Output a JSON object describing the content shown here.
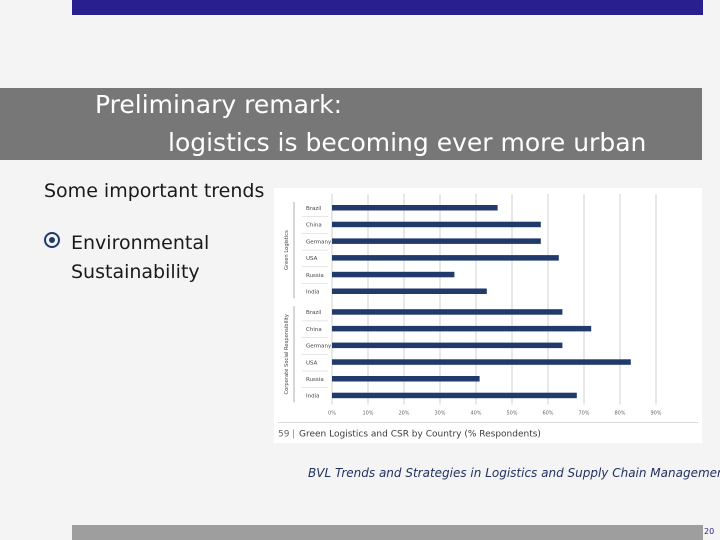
{
  "slide": {
    "title_line1": "Preliminary remark:",
    "title_line2": "logistics is becoming ever more urban",
    "trends_label": "Some important trends",
    "bullet_text": "Environmental Sustainability",
    "source": "BVL Trends and Strategies in Logistics and Supply Chain Management",
    "page_number": "20"
  },
  "colors": {
    "accent_bar": "#2a1f8f",
    "title_band": "#777777",
    "chart_bar": "#1f3a6b"
  },
  "chart_data": {
    "type": "bar",
    "orientation": "horizontal",
    "caption_number": "59",
    "title": "Green Logistics and CSR by Country (% Respondents)",
    "groups": [
      {
        "name": "Green Logistics",
        "categories": [
          "Brazil",
          "China",
          "Germany",
          "USA",
          "Russia",
          "India"
        ],
        "values": [
          46,
          58,
          58,
          63,
          34,
          43
        ]
      },
      {
        "name": "Corporate Social Responsibility",
        "categories": [
          "Brazil",
          "China",
          "Germany",
          "USA",
          "Russia",
          "India"
        ],
        "values": [
          64,
          72,
          64,
          83,
          41,
          68
        ]
      }
    ],
    "xlim": [
      0,
      100
    ],
    "xticks": [
      "0%",
      "10%",
      "20%",
      "30%",
      "40%",
      "50%",
      "60%",
      "70%",
      "80%",
      "90%"
    ],
    "grid": true
  }
}
